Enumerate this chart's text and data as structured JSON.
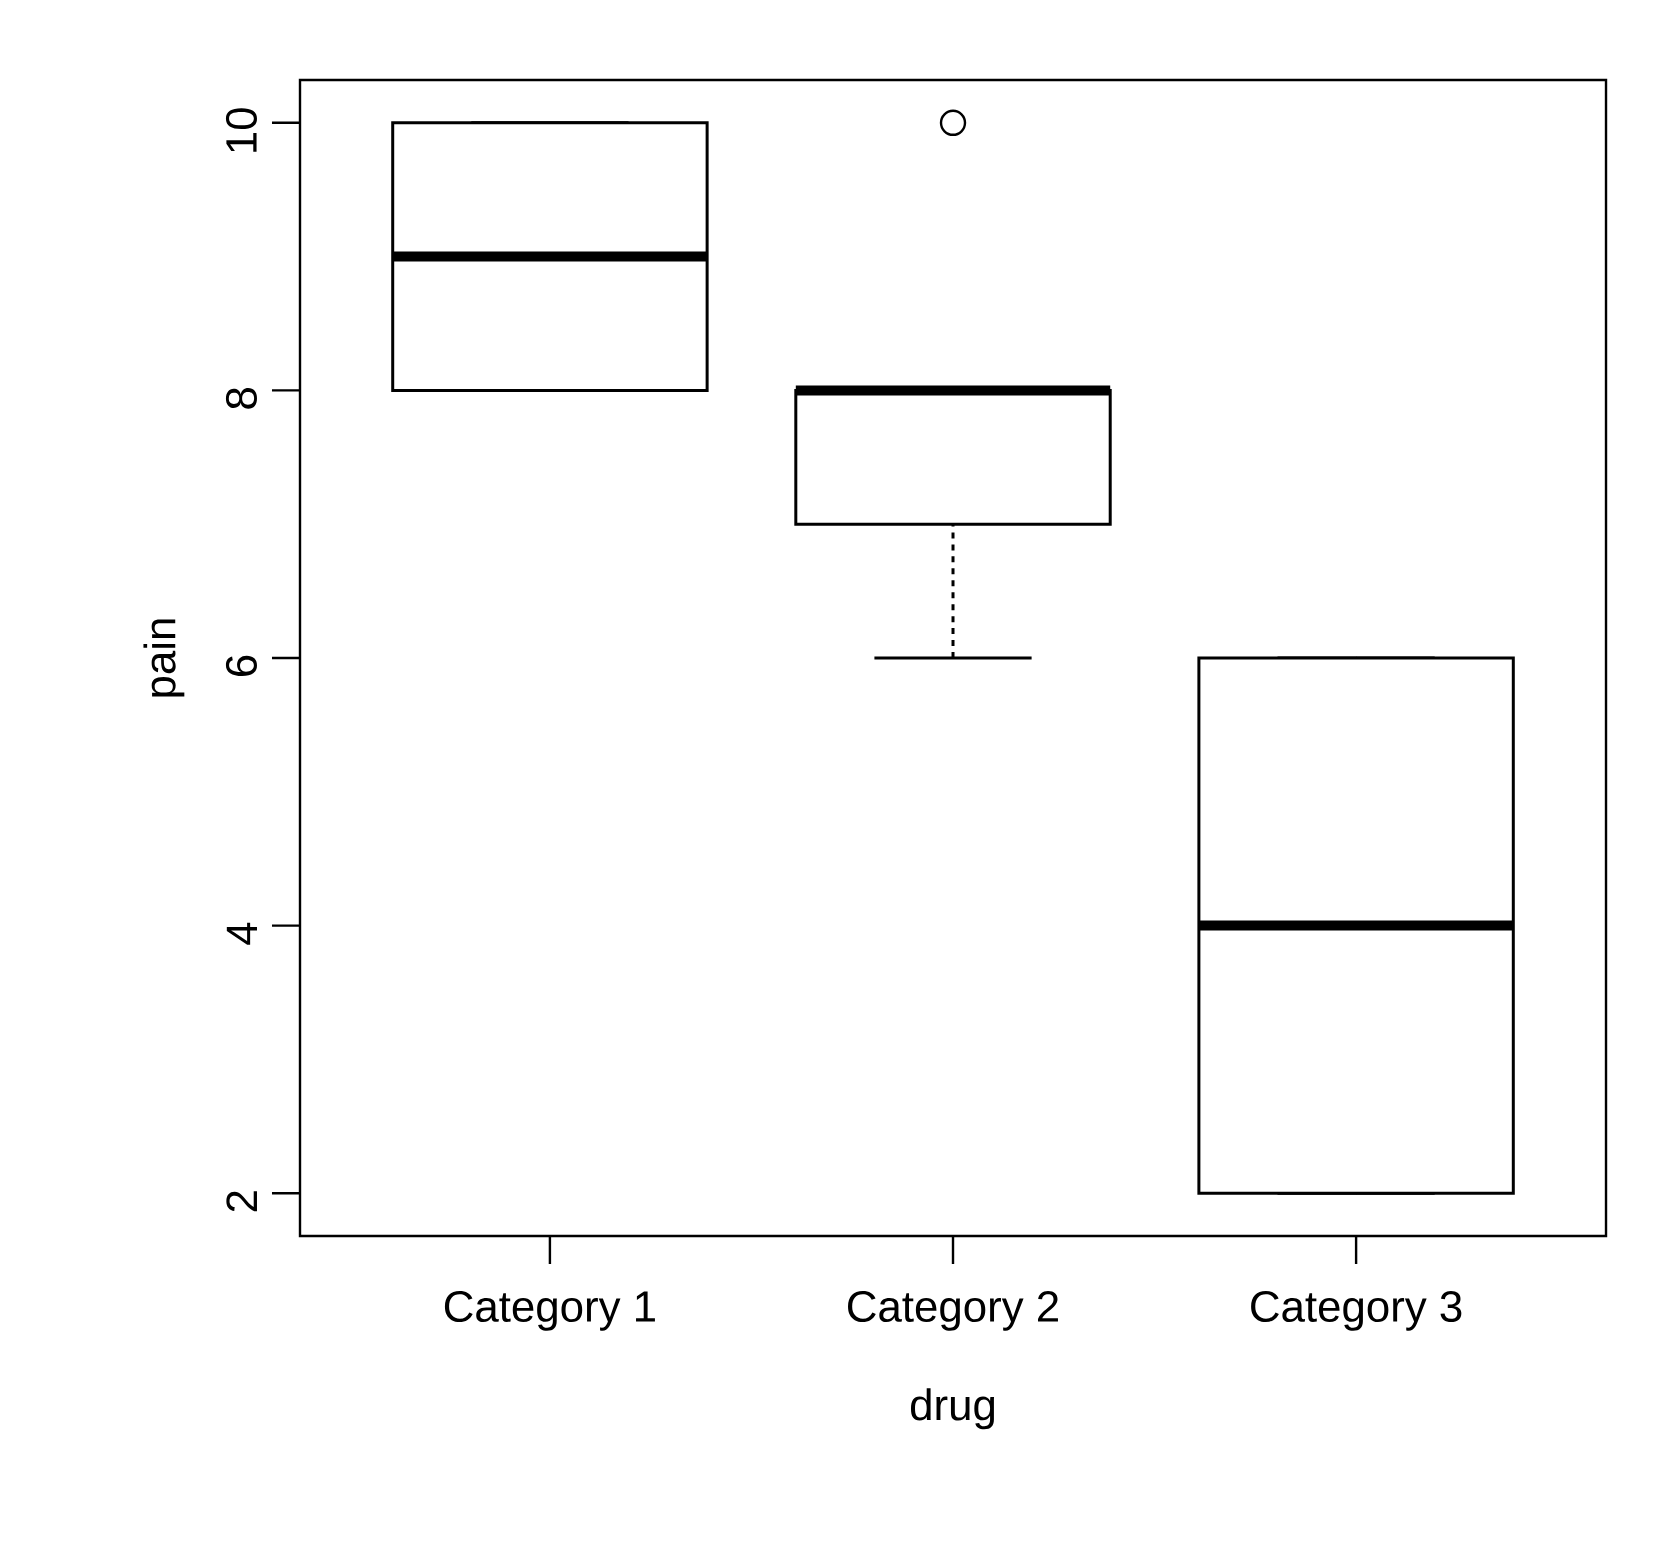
{
  "chart_data": {
    "type": "box",
    "xlabel": "drug",
    "ylabel": "pain",
    "categories": [
      "Category 1",
      "Category 2",
      "Category 3"
    ],
    "ylim": [
      1.68,
      10.32
    ],
    "yticks": [
      2,
      4,
      6,
      8,
      10
    ],
    "grid": false,
    "legend": false,
    "boxes": [
      {
        "low": 8,
        "q1": 8,
        "median": 9,
        "q3": 10,
        "high": 10
      },
      {
        "low": 6,
        "q1": 7,
        "median": 8,
        "q3": 8,
        "high": 8,
        "outliers": [
          10
        ]
      },
      {
        "low": 2,
        "q1": 2,
        "median": 4,
        "q3": 6,
        "high": 6
      }
    ]
  }
}
